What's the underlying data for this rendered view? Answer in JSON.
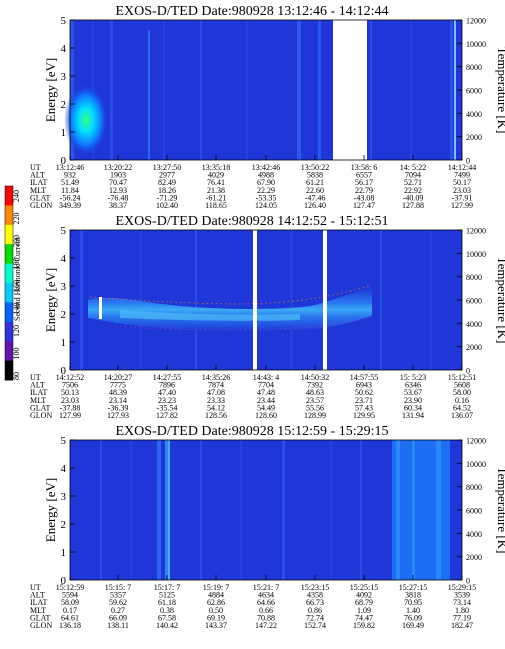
{
  "colorbar": {
    "label": "Second Harmonic Current",
    "ticks": [
      "240",
      "220",
      "200",
      "180",
      "160",
      "140",
      "120",
      "100",
      "80"
    ],
    "colors": [
      "#ff0000",
      "#ff8800",
      "#ffff00",
      "#00dd00",
      "#00ffcc",
      "#00ccff",
      "#0066ff",
      "#3333dd",
      "#6611aa",
      "#000000"
    ]
  },
  "chart_data": [
    {
      "type": "heatmap",
      "title": "EXOS-D/TED   Date:980928   13:12:46 - 14:12:44",
      "ylabel": "Energy [eV]",
      "ylabel_right": "Temperature [K]",
      "ylim": [
        0,
        5
      ],
      "ylim_right": [
        0,
        12000
      ],
      "yticks": [
        "0",
        "1",
        "2",
        "3",
        "4",
        "5"
      ],
      "yticks_right": [
        "0",
        "2000",
        "4000",
        "6000",
        "8000",
        "10000",
        "12000"
      ],
      "row_labels": [
        "UT",
        "ALT",
        "ILAT",
        "MLT",
        "GLAT",
        "GLON"
      ],
      "columns": [
        [
          "13:12:46",
          "932",
          "51.49",
          "11.84",
          "-56.24",
          "349.39"
        ],
        [
          "13:20:22",
          "1903",
          "70.47",
          "12.93",
          "-76.48",
          "38.37"
        ],
        [
          "13:27:50",
          "2977",
          "82.49",
          "18.26",
          "-71.29",
          "102.40"
        ],
        [
          "13:35:18",
          "4029",
          "76.41",
          "21.38",
          "-61.21",
          "118.65"
        ],
        [
          "13:42:46",
          "4988",
          "67.90",
          "22.29",
          "-53.35",
          "124.05"
        ],
        [
          "13:50:22",
          "5838",
          "61.21",
          "22.60",
          "-47.46",
          "126.40"
        ],
        [
          "13:58: 6",
          "6557",
          "56.17",
          "22.79",
          "-43.08",
          "127.47"
        ],
        [
          "14: 5:22",
          "7094",
          "52.71",
          "22.92",
          "-40.09",
          "127.88"
        ],
        [
          "14:12:44",
          "7499",
          "50.17",
          "23.03",
          "-37.91",
          "127.99"
        ]
      ]
    },
    {
      "type": "heatmap",
      "title": "EXOS-D/TED   Date:980928   14:12:52 - 15:12:51",
      "ylabel": "Energy [eV]",
      "ylabel_right": "Temperature [K]",
      "ylim": [
        0,
        5
      ],
      "ylim_right": [
        0,
        12000
      ],
      "yticks": [
        "0",
        "1",
        "2",
        "3",
        "4",
        "5"
      ],
      "yticks_right": [
        "0",
        "2000",
        "4000",
        "6000",
        "8000",
        "10000",
        "12000"
      ],
      "row_labels": [
        "UT",
        "ALT",
        "ILAT",
        "MLT",
        "GLAT",
        "GLON"
      ],
      "columns": [
        [
          "14:12:52",
          "7506",
          "50.13",
          "23.03",
          "-37.88",
          "127.99"
        ],
        [
          "14:20:27",
          "7775",
          "48.39",
          "23.14",
          "-36.39",
          "127.93"
        ],
        [
          "14:27:55",
          "7896",
          "47.40",
          "23.23",
          "-35.54",
          "127.82"
        ],
        [
          "14:35:26",
          "7874",
          "47.08",
          "23.33",
          "54.12",
          "128.56"
        ],
        [
          "14:43: 4",
          "7704",
          "47.48",
          "23.44",
          "54.49",
          "128.60"
        ],
        [
          "14:50:32",
          "7392",
          "48.63",
          "23.57",
          "55.56",
          "128.99"
        ],
        [
          "14:57:55",
          "6943",
          "50.62",
          "23.71",
          "57.43",
          "129.95"
        ],
        [
          "15: 5:23",
          "6346",
          "53.67",
          "23.90",
          "60.34",
          "131.94"
        ],
        [
          "15:12:51",
          "5608",
          "58.00",
          "0.16",
          "64.52",
          "136.07"
        ]
      ]
    },
    {
      "type": "heatmap",
      "title": "EXOS-D/TED   Date:980928   15:12:59 - 15:29:15",
      "ylabel": "Energy [eV]",
      "ylabel_right": "Temperature [K]",
      "ylim": [
        0,
        5
      ],
      "ylim_right": [
        0,
        12000
      ],
      "yticks": [
        "0",
        "1",
        "2",
        "3",
        "4",
        "5"
      ],
      "yticks_right": [
        "0",
        "2000",
        "4000",
        "6000",
        "8000",
        "10000",
        "12000"
      ],
      "row_labels": [
        "UT",
        "ALT",
        "ILAT",
        "MLT",
        "GLAT",
        "GLON"
      ],
      "columns": [
        [
          "15:12:59",
          "5594",
          "58.09",
          "0.17",
          "64.61",
          "136.18"
        ],
        [
          "15:15: 7",
          "5357",
          "59.62",
          "0.27",
          "66.09",
          "138.11"
        ],
        [
          "15:17: 7",
          "5125",
          "61.18",
          "0.38",
          "67.58",
          "140.42"
        ],
        [
          "15:19: 7",
          "4884",
          "62.86",
          "0.50",
          "69.19",
          "143.37"
        ],
        [
          "15:21: 7",
          "4634",
          "64.66",
          "0.66",
          "70.88",
          "147.22"
        ],
        [
          "15:23:15",
          "4358",
          "66.73",
          "0.86",
          "72.74",
          "152.74"
        ],
        [
          "15:25:15",
          "4092",
          "68.79",
          "1.09",
          "74.47",
          "159.82"
        ],
        [
          "15:27:15",
          "3818",
          "70.95",
          "1.40",
          "76.09",
          "169.49"
        ],
        [
          "15:29:15",
          "3539",
          "73.14",
          "1.80",
          "77.19",
          "182.47"
        ]
      ]
    }
  ]
}
